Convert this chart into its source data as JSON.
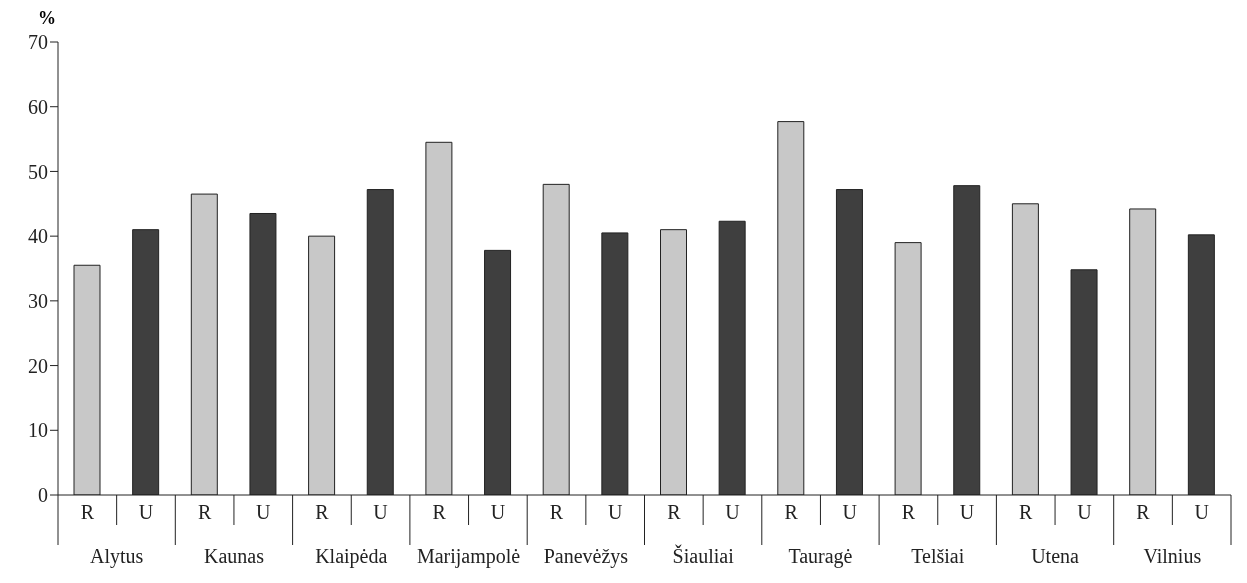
{
  "chart_data": {
    "type": "bar",
    "ylabel": "%",
    "categories": [
      "Alytus",
      "Kaunas",
      "Klaipėda",
      "Marijampolė",
      "Panevėžys",
      "Šiauliai",
      "Tauragė",
      "Telšiai",
      "Utena",
      "Vilnius"
    ],
    "series": [
      {
        "name": "R",
        "color": "#c8c8c8",
        "values": [
          35.5,
          46.5,
          40,
          54.5,
          48,
          41,
          57.7,
          39,
          45,
          44.2
        ]
      },
      {
        "name": "U",
        "color": "#3f3f3f",
        "values": [
          41,
          43.5,
          47.2,
          37.8,
          40.5,
          42.3,
          47.2,
          47.8,
          34.8,
          40.2
        ]
      }
    ],
    "ylim": [
      0,
      70
    ],
    "yticks": [
      0,
      10,
      20,
      30,
      40,
      50,
      60,
      70
    ]
  }
}
